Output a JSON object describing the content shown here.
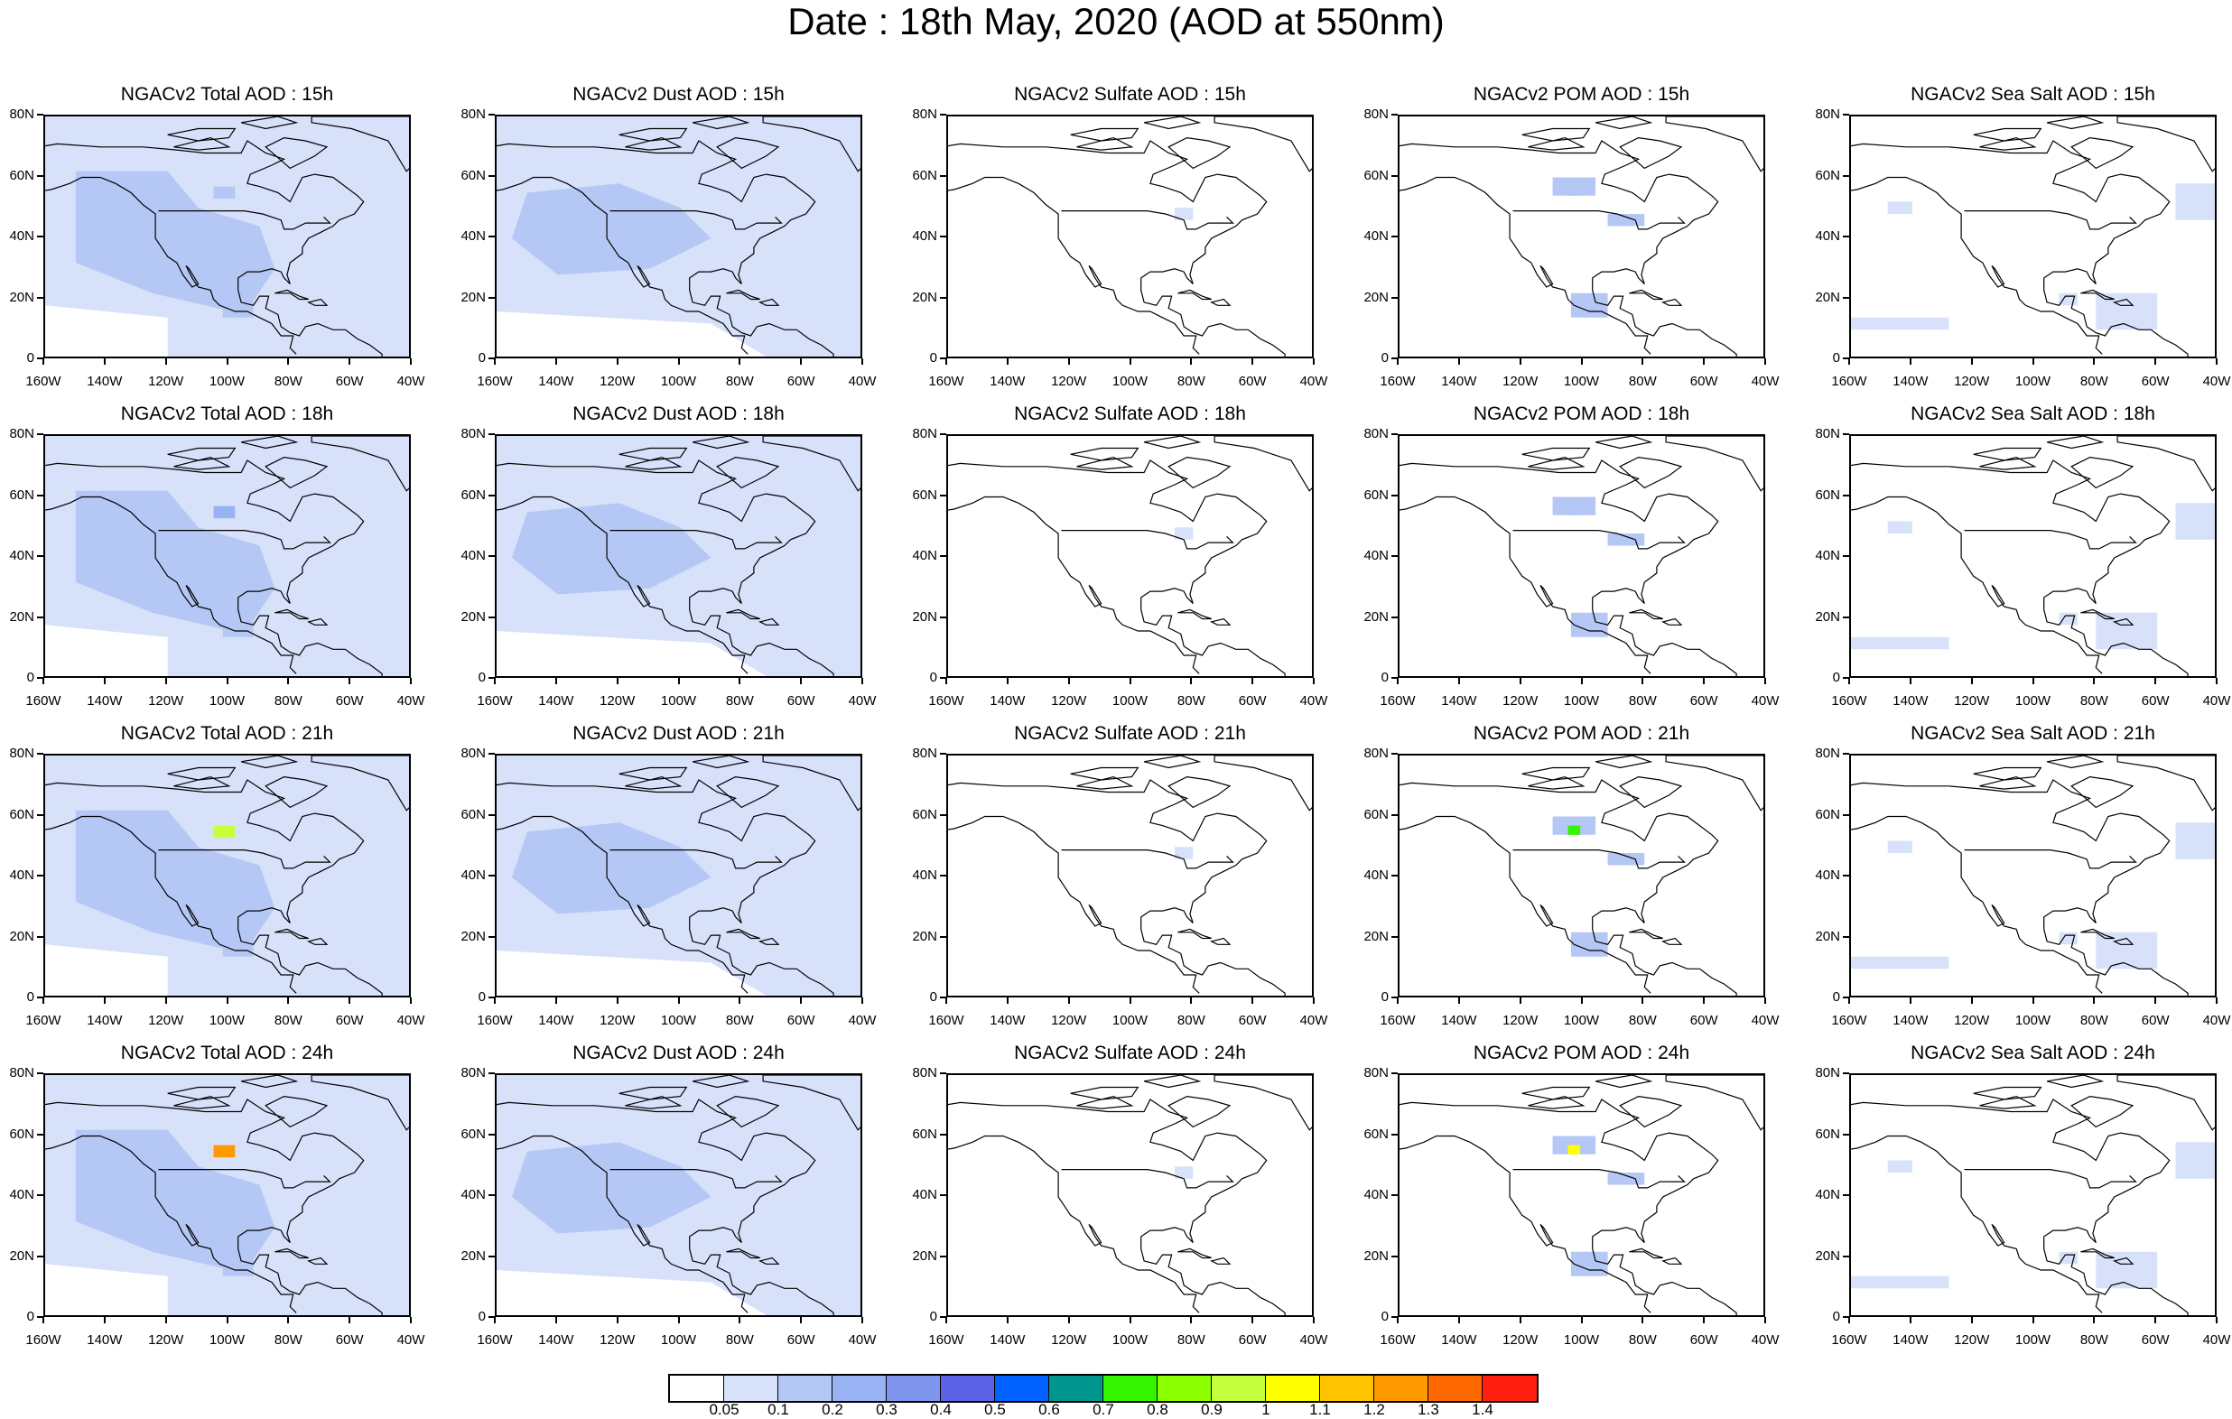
{
  "figure": {
    "title": "Date : 18th May, 2020 (AOD at 550nm)"
  },
  "rows": [
    {
      "hour": "15h",
      "titles": [
        "NGACv2 Total AOD : 15h",
        "NGACv2 Dust AOD : 15h",
        "NGACv2 Sulfate AOD : 15h",
        "NGACv2 POM AOD : 15h",
        "NGACv2 Sea Salt AOD : 15h"
      ]
    },
    {
      "hour": "18h",
      "titles": [
        "NGACv2 Total AOD : 18h",
        "NGACv2 Dust AOD : 18h",
        "NGACv2 Sulfate AOD : 18h",
        "NGACv2 POM AOD : 18h",
        "NGACv2 Sea Salt AOD : 18h"
      ]
    },
    {
      "hour": "21h",
      "titles": [
        "NGACv2 Total AOD : 21h",
        "NGACv2 Dust AOD : 21h",
        "NGACv2 Sulfate AOD : 21h",
        "NGACv2 POM AOD : 21h",
        "NGACv2 Sea Salt AOD : 21h"
      ]
    },
    {
      "hour": "24h",
      "titles": [
        "NGACv2 Total AOD : 24h",
        "NGACv2 Dust AOD : 24h",
        "NGACv2 Sulfate AOD : 24h",
        "NGACv2 POM AOD : 24h",
        "NGACv2 Sea Salt  AOD : 24h"
      ]
    }
  ],
  "species": [
    "Total",
    "Dust",
    "Sulfate",
    "POM",
    "Sea Salt"
  ],
  "axes": {
    "y_ticks": [
      "80N",
      "60N",
      "40N",
      "20N",
      "0"
    ],
    "x_ticks": [
      "160W",
      "140W",
      "120W",
      "100W",
      "80W",
      "60W",
      "40W"
    ],
    "lat_range": [
      0,
      80
    ],
    "lon_range": [
      -160,
      -40
    ]
  },
  "colorbar": {
    "labels": [
      "0.05",
      "0.1",
      "0.2",
      "0.3",
      "0.4",
      "0.5",
      "0.6",
      "0.7",
      "0.8",
      "0.9",
      "1",
      "1.1",
      "1.2",
      "1.3",
      "1.4"
    ],
    "colors": [
      "#ffffff",
      "#d7e1fa",
      "#b5c7f5",
      "#98b2f3",
      "#7f95ee",
      "#5e62e6",
      "#0063ff",
      "#00968f",
      "#34f400",
      "#8cff00",
      "#c6ff3c",
      "#ffff00",
      "#ffc400",
      "#ff9900",
      "#ff6a00",
      "#ff2010"
    ]
  },
  "fields": {
    "Total": {
      "base": "#d7e1fa",
      "mid": "#b5c7f5",
      "peak_by_hour": [
        "#b5c7f5",
        "#98b2f3",
        "#c6ff3c",
        "#ff9900"
      ]
    },
    "Dust": {
      "base": "#d7e1fa",
      "mid": "#b5c7f5"
    },
    "Sulfate": {
      "base": "#ffffff",
      "mid": "#d7e1fa"
    },
    "POM": {
      "base": "#ffffff",
      "mid": "#b5c7f5",
      "peak_by_hour": [
        "#b5c7f5",
        "#b5c7f5",
        "#34f400",
        "#ffff00"
      ]
    },
    "Sea Salt": {
      "base": "#ffffff",
      "mid": "#d7e1fa"
    }
  }
}
